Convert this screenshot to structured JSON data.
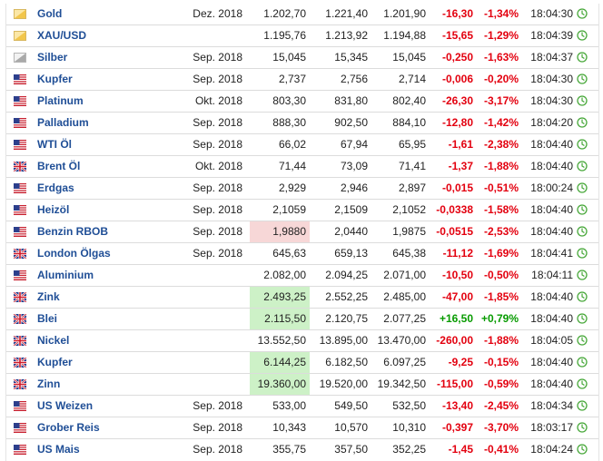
{
  "colors": {
    "link": "#1f4e96",
    "negative": "#e3000f",
    "positive": "#079b00",
    "highlight_red": "#f7d7d7",
    "highlight_green": "#cdf1c7"
  },
  "rows": [
    {
      "icon": "gold-bar-icon",
      "name": "Gold",
      "month": "Dez. 2018",
      "last": "1.202,70",
      "high": "1.221,40",
      "low": "1.201,90",
      "change": "-16,30",
      "percent": "-1,34%",
      "time": "18:04:30",
      "dir": "neg",
      "hl": ""
    },
    {
      "icon": "gold-bar-icon",
      "name": "XAU/USD",
      "month": "",
      "last": "1.195,76",
      "high": "1.213,92",
      "low": "1.194,88",
      "change": "-15,65",
      "percent": "-1,29%",
      "time": "18:04:39",
      "dir": "neg",
      "hl": ""
    },
    {
      "icon": "silver-bar-icon",
      "name": "Silber",
      "month": "Sep. 2018",
      "last": "15,045",
      "high": "15,345",
      "low": "15,045",
      "change": "-0,250",
      "percent": "-1,63%",
      "time": "18:04:37",
      "dir": "neg",
      "hl": ""
    },
    {
      "icon": "us-flag-icon",
      "name": "Kupfer",
      "month": "Sep. 2018",
      "last": "2,737",
      "high": "2,756",
      "low": "2,714",
      "change": "-0,006",
      "percent": "-0,20%",
      "time": "18:04:30",
      "dir": "neg",
      "hl": ""
    },
    {
      "icon": "us-flag-icon",
      "name": "Platinum",
      "month": "Okt. 2018",
      "last": "803,30",
      "high": "831,80",
      "low": "802,40",
      "change": "-26,30",
      "percent": "-3,17%",
      "time": "18:04:30",
      "dir": "neg",
      "hl": ""
    },
    {
      "icon": "us-flag-icon",
      "name": "Palladium",
      "month": "Sep. 2018",
      "last": "888,30",
      "high": "902,50",
      "low": "884,10",
      "change": "-12,80",
      "percent": "-1,42%",
      "time": "18:04:20",
      "dir": "neg",
      "hl": ""
    },
    {
      "icon": "us-flag-icon",
      "name": "WTI Öl",
      "month": "Sep. 2018",
      "last": "66,02",
      "high": "67,94",
      "low": "65,95",
      "change": "-1,61",
      "percent": "-2,38%",
      "time": "18:04:40",
      "dir": "neg",
      "hl": ""
    },
    {
      "icon": "uk-flag-icon",
      "name": "Brent Öl",
      "month": "Okt. 2018",
      "last": "71,44",
      "high": "73,09",
      "low": "71,41",
      "change": "-1,37",
      "percent": "-1,88%",
      "time": "18:04:40",
      "dir": "neg",
      "hl": ""
    },
    {
      "icon": "us-flag-icon",
      "name": "Erdgas",
      "month": "Sep. 2018",
      "last": "2,929",
      "high": "2,946",
      "low": "2,897",
      "change": "-0,015",
      "percent": "-0,51%",
      "time": "18:00:24",
      "dir": "neg",
      "hl": ""
    },
    {
      "icon": "us-flag-icon",
      "name": "Heizöl",
      "month": "Sep. 2018",
      "last": "2,1059",
      "high": "2,1509",
      "low": "2,1052",
      "change": "-0,0338",
      "percent": "-1,58%",
      "time": "18:04:40",
      "dir": "neg",
      "hl": ""
    },
    {
      "icon": "us-flag-icon",
      "name": "Benzin RBOB",
      "month": "Sep. 2018",
      "last": "1,9880",
      "high": "2,0440",
      "low": "1,9875",
      "change": "-0,0515",
      "percent": "-2,53%",
      "time": "18:04:40",
      "dir": "neg",
      "hl": "red"
    },
    {
      "icon": "uk-flag-icon",
      "name": "London Ölgas",
      "month": "Sep. 2018",
      "last": "645,63",
      "high": "659,13",
      "low": "645,38",
      "change": "-11,12",
      "percent": "-1,69%",
      "time": "18:04:41",
      "dir": "neg",
      "hl": ""
    },
    {
      "icon": "us-flag-icon",
      "name": "Aluminium",
      "month": "",
      "last": "2.082,00",
      "high": "2.094,25",
      "low": "2.071,00",
      "change": "-10,50",
      "percent": "-0,50%",
      "time": "18:04:11",
      "dir": "neg",
      "hl": ""
    },
    {
      "icon": "uk-flag-icon",
      "name": "Zink",
      "month": "",
      "last": "2.493,25",
      "high": "2.552,25",
      "low": "2.485,00",
      "change": "-47,00",
      "percent": "-1,85%",
      "time": "18:04:40",
      "dir": "neg",
      "hl": "green"
    },
    {
      "icon": "uk-flag-icon",
      "name": "Blei",
      "month": "",
      "last": "2.115,50",
      "high": "2.120,75",
      "low": "2.077,25",
      "change": "+16,50",
      "percent": "+0,79%",
      "time": "18:04:40",
      "dir": "pos",
      "hl": "green"
    },
    {
      "icon": "uk-flag-icon",
      "name": "Nickel",
      "month": "",
      "last": "13.552,50",
      "high": "13.895,00",
      "low": "13.470,00",
      "change": "-260,00",
      "percent": "-1,88%",
      "time": "18:04:05",
      "dir": "neg",
      "hl": ""
    },
    {
      "icon": "uk-flag-icon",
      "name": "Kupfer",
      "month": "",
      "last": "6.144,25",
      "high": "6.182,50",
      "low": "6.097,25",
      "change": "-9,25",
      "percent": "-0,15%",
      "time": "18:04:40",
      "dir": "neg",
      "hl": "green"
    },
    {
      "icon": "uk-flag-icon",
      "name": "Zinn",
      "month": "",
      "last": "19.360,00",
      "high": "19.520,00",
      "low": "19.342,50",
      "change": "-115,00",
      "percent": "-0,59%",
      "time": "18:04:40",
      "dir": "neg",
      "hl": "green"
    },
    {
      "icon": "us-flag-icon",
      "name": "US Weizen",
      "month": "Sep. 2018",
      "last": "533,00",
      "high": "549,50",
      "low": "532,50",
      "change": "-13,40",
      "percent": "-2,45%",
      "time": "18:04:34",
      "dir": "neg",
      "hl": ""
    },
    {
      "icon": "us-flag-icon",
      "name": "Grober Reis",
      "month": "Sep. 2018",
      "last": "10,343",
      "high": "10,570",
      "low": "10,310",
      "change": "-0,397",
      "percent": "-3,70%",
      "time": "18:03:17",
      "dir": "neg",
      "hl": ""
    },
    {
      "icon": "us-flag-icon",
      "name": "US Mais",
      "month": "Sep. 2018",
      "last": "355,75",
      "high": "357,50",
      "low": "352,25",
      "change": "-1,45",
      "percent": "-0,41%",
      "time": "18:04:24",
      "dir": "neg",
      "hl": ""
    }
  ]
}
